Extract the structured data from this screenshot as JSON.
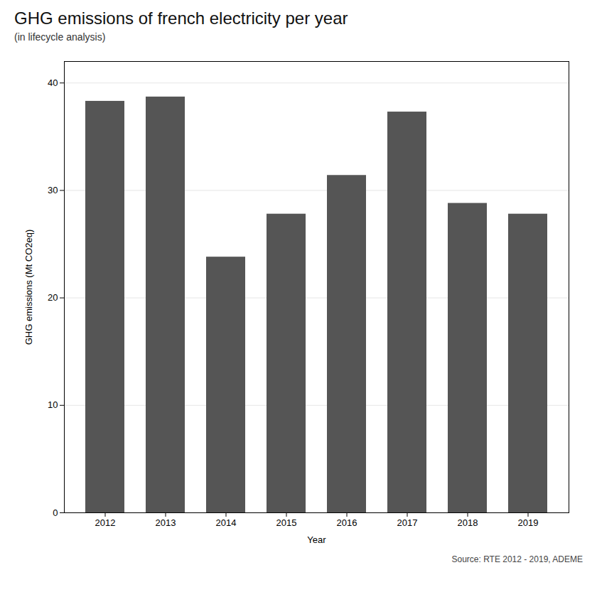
{
  "chart_data": {
    "type": "bar",
    "title": "GHG emissions of french electricity per year",
    "subtitle": "(in lifecycle analysis)",
    "xlabel": "Year",
    "ylabel": "GHG emissions (Mt CO2eq)",
    "source": "Source: RTE 2012 - 2019, ADEME",
    "categories": [
      "2012",
      "2013",
      "2014",
      "2015",
      "2016",
      "2017",
      "2018",
      "2019"
    ],
    "values": [
      38.3,
      38.7,
      23.8,
      27.8,
      31.4,
      37.3,
      28.8,
      27.8
    ],
    "color": "#555555",
    "ylim": [
      0,
      42
    ],
    "yticks": [
      0,
      10,
      20,
      30,
      40
    ],
    "grid": true
  }
}
